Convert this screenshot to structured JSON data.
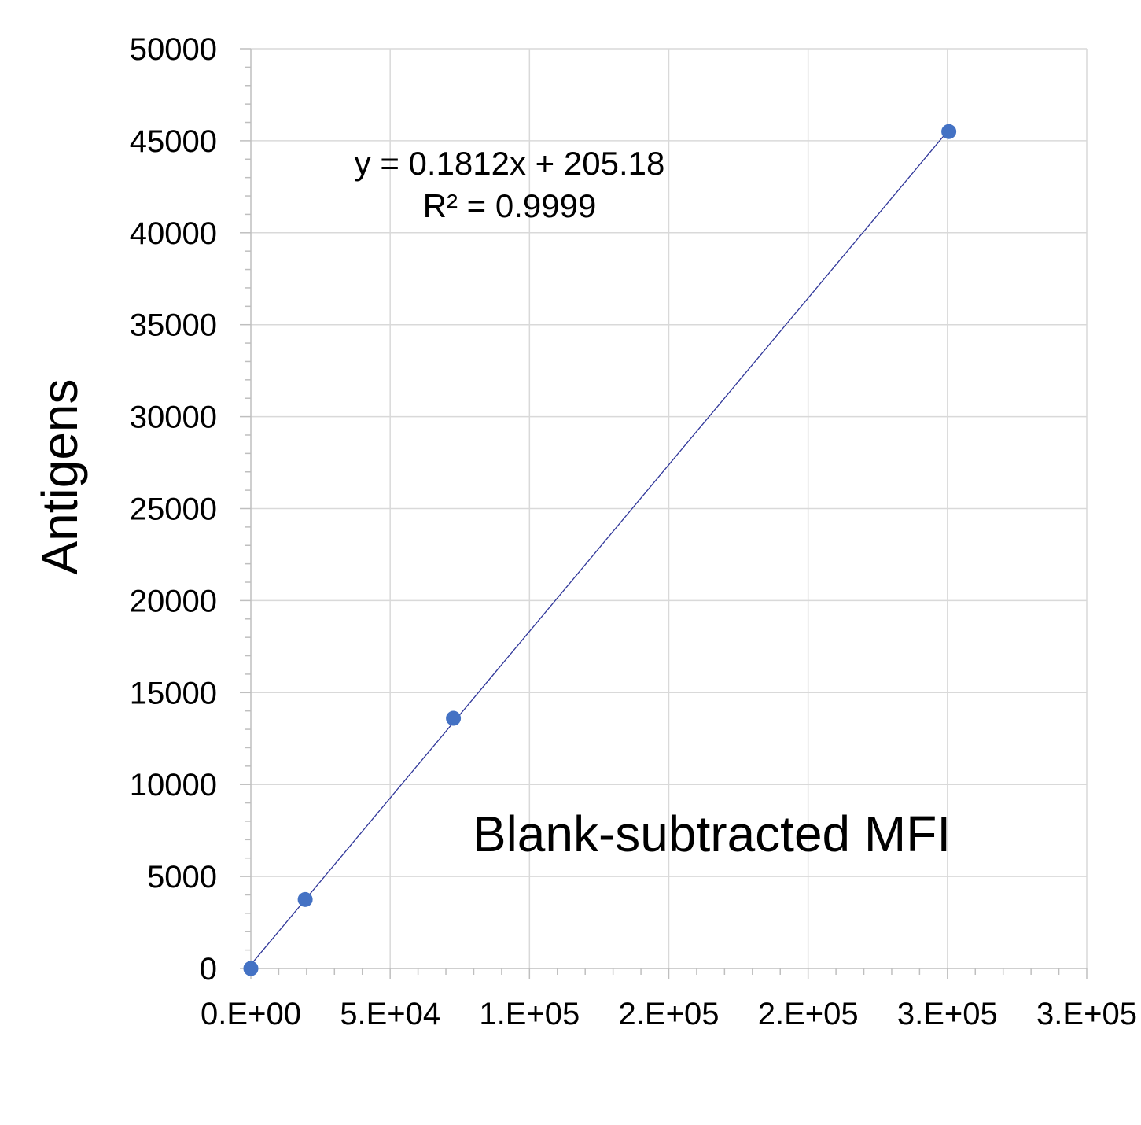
{
  "chart_data": {
    "type": "scatter",
    "xlabel": "Blank-subtracted MFI",
    "ylabel": "Antigens",
    "xlim": [
      0,
      300000
    ],
    "ylim": [
      0,
      50000
    ],
    "x_tick_values": [
      0,
      50000,
      100000,
      150000,
      200000,
      250000,
      300000
    ],
    "x_tick_labels": [
      "0.E+00",
      "5.E+04",
      "1.E+05",
      "2.E+05",
      "2.E+05",
      "3.E+05",
      "3.E+05"
    ],
    "y_tick_values": [
      0,
      5000,
      10000,
      15000,
      20000,
      25000,
      30000,
      35000,
      40000,
      45000,
      50000
    ],
    "y_tick_labels": [
      "0",
      "5000",
      "10000",
      "15000",
      "20000",
      "25000",
      "30000",
      "35000",
      "40000",
      "45000",
      "50000"
    ],
    "grid": true,
    "series": [
      {
        "points": [
          {
            "x": 0,
            "y": 0
          },
          {
            "x": 19500,
            "y": 3750
          },
          {
            "x": 72700,
            "y": 13600
          },
          {
            "x": 250500,
            "y": 45500
          }
        ]
      }
    ],
    "trendline": {
      "type": "linear",
      "slope": 0.1812,
      "intercept": 205.18,
      "equation": "y = 0.1812x + 205.18",
      "r_squared": "R² = 0.9999"
    },
    "colors": {
      "marker": "#4472c4",
      "trendline": "#2f3699",
      "grid": "#d9d9d9",
      "axis": "#bfbfbf"
    }
  }
}
